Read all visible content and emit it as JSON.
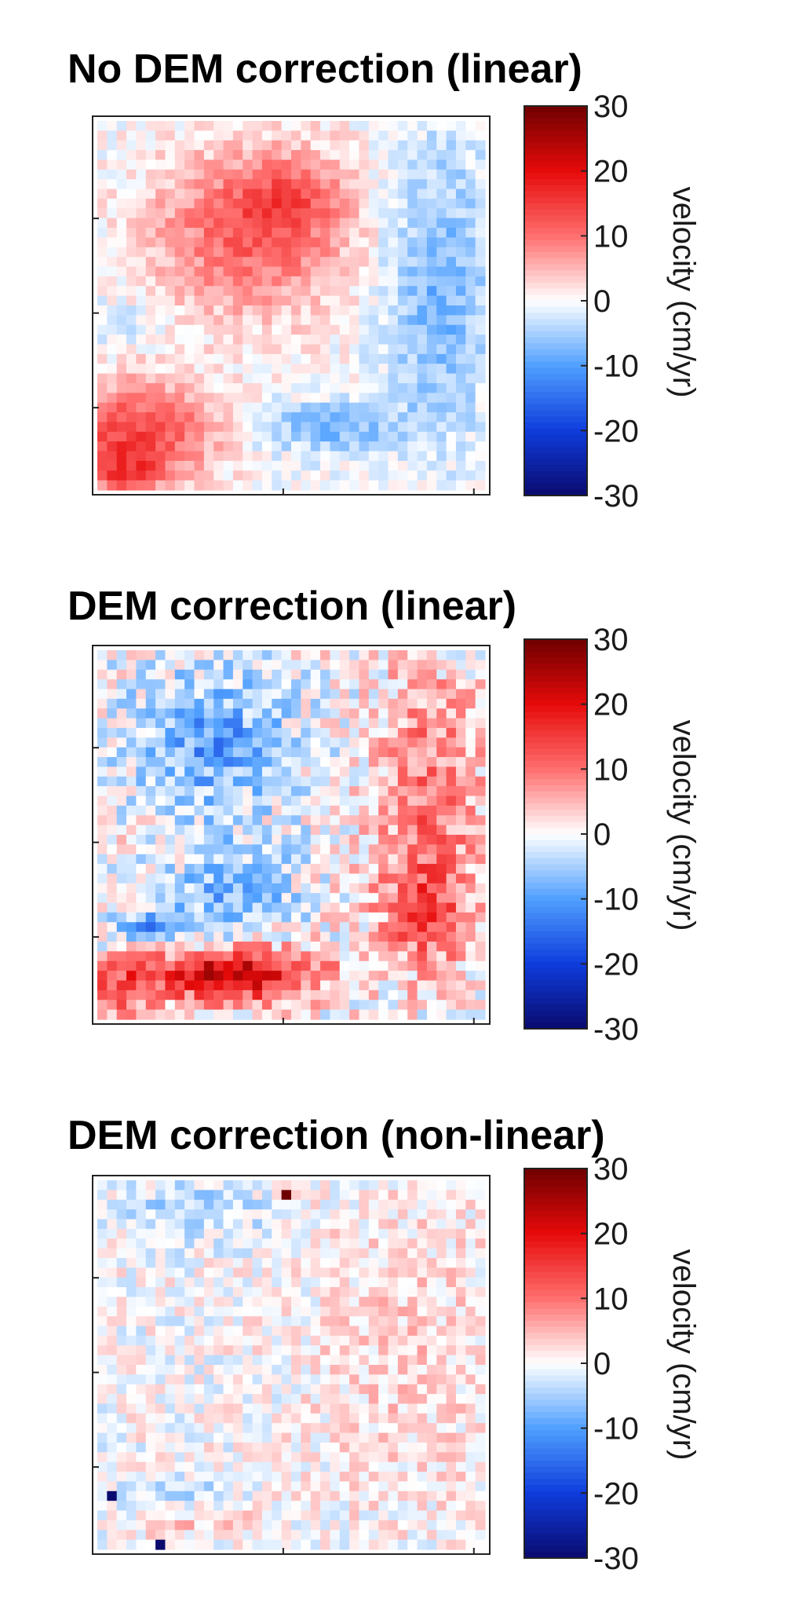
{
  "chart_data": [
    {
      "type": "heatmap",
      "title": "No DEM correction (linear)",
      "colorbar": {
        "label": "velocity (cm/yr)",
        "range": [
          -30,
          30
        ],
        "ticks": [
          30,
          20,
          10,
          0,
          -10,
          -20,
          -30
        ],
        "colormap": "blue-white-red"
      },
      "grid": {
        "rows": 38,
        "cols": 40
      },
      "field_features": [
        {
          "cx": 0.4,
          "cy": 0.3,
          "sx": 0.25,
          "sy": 0.22,
          "v": 12
        },
        {
          "cx": 0.5,
          "cy": 0.2,
          "sx": 0.12,
          "sy": 0.1,
          "v": 6
        },
        {
          "cx": 0.1,
          "cy": 0.85,
          "sx": 0.2,
          "sy": 0.14,
          "v": 14
        },
        {
          "cx": 0.06,
          "cy": 0.95,
          "sx": 0.1,
          "sy": 0.06,
          "v": 8
        },
        {
          "cx": 0.88,
          "cy": 0.45,
          "sx": 0.14,
          "sy": 0.4,
          "v": -8
        },
        {
          "cx": 0.6,
          "cy": 0.83,
          "sx": 0.18,
          "sy": 0.07,
          "v": -8
        },
        {
          "cx": 0.05,
          "cy": 0.55,
          "sx": 0.1,
          "sy": 0.05,
          "v": -4
        }
      ],
      "field_noise": 3
    },
    {
      "type": "heatmap",
      "title": "DEM correction (linear)",
      "colorbar": {
        "label": "velocity (cm/yr)",
        "range": [
          -30,
          30
        ],
        "ticks": [
          30,
          20,
          10,
          0,
          -10,
          -20,
          -30
        ],
        "colormap": "blue-white-red"
      },
      "grid": {
        "rows": 38,
        "cols": 40
      },
      "field_features": [
        {
          "cx": 0.35,
          "cy": 0.88,
          "sx": 0.22,
          "sy": 0.07,
          "v": 24
        },
        {
          "cx": 0.05,
          "cy": 0.92,
          "sx": 0.1,
          "sy": 0.08,
          "v": 12
        },
        {
          "cx": 0.85,
          "cy": 0.4,
          "sx": 0.14,
          "sy": 0.35,
          "v": 10
        },
        {
          "cx": 0.85,
          "cy": 0.72,
          "sx": 0.12,
          "sy": 0.15,
          "v": 10
        },
        {
          "cx": 0.3,
          "cy": 0.25,
          "sx": 0.2,
          "sy": 0.18,
          "v": -10
        },
        {
          "cx": 0.35,
          "cy": 0.65,
          "sx": 0.15,
          "sy": 0.12,
          "v": -8
        },
        {
          "cx": 0.15,
          "cy": 0.75,
          "sx": 0.12,
          "sy": 0.05,
          "v": -10
        }
      ],
      "field_noise": 6
    },
    {
      "type": "heatmap",
      "title": "DEM correction (non-linear)",
      "colorbar": {
        "label": "velocity (cm/yr)",
        "range": [
          -30,
          30
        ],
        "ticks": [
          30,
          20,
          10,
          0,
          -10,
          -20,
          -30
        ],
        "colormap": "blue-white-red"
      },
      "grid": {
        "rows": 38,
        "cols": 40
      },
      "field_features": [
        {
          "cx": 0.8,
          "cy": 0.45,
          "sx": 0.25,
          "sy": 0.45,
          "v": 3
        },
        {
          "cx": 0.25,
          "cy": 0.08,
          "sx": 0.2,
          "sy": 0.08,
          "v": -5
        },
        {
          "cx": 0.2,
          "cy": 0.85,
          "sx": 0.15,
          "sy": 0.05,
          "v": -4
        },
        {
          "cx": 0.25,
          "cy": 0.92,
          "sx": 0.15,
          "sy": 0.05,
          "v": 4
        }
      ],
      "field_noise": 4,
      "outliers": [
        {
          "row": 1,
          "col": 19,
          "v": 30
        },
        {
          "row": 32,
          "col": 1,
          "v": -30
        },
        {
          "row": 37,
          "col": 6,
          "v": -30
        }
      ]
    }
  ]
}
